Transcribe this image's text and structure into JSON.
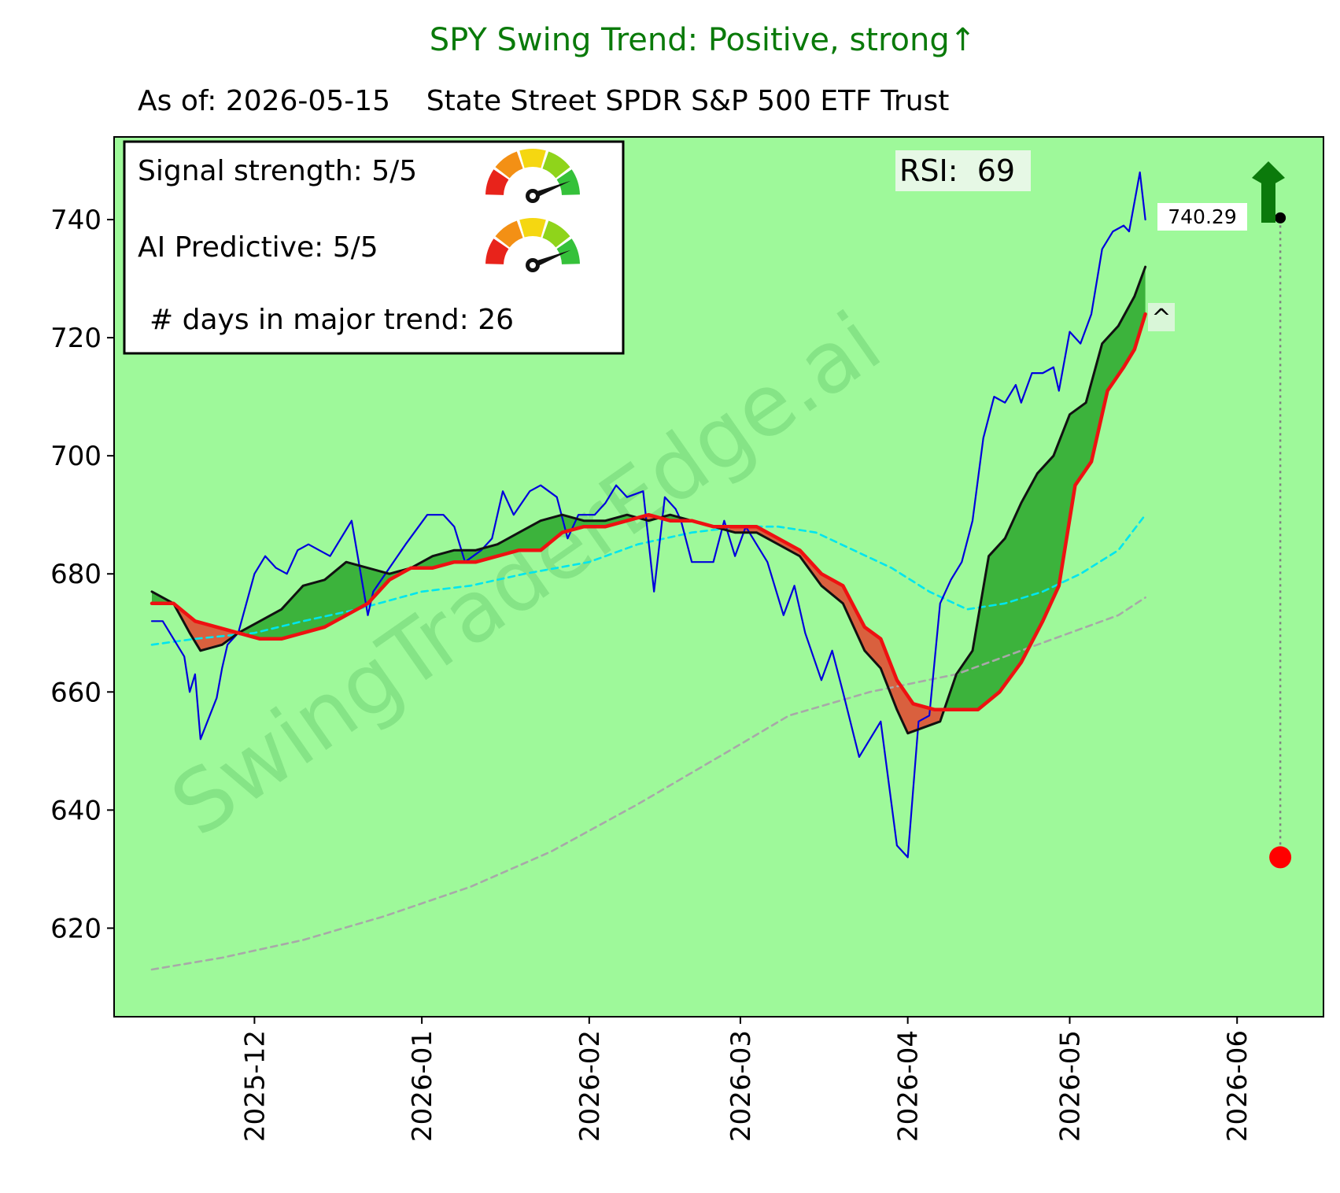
{
  "chart_data": {
    "type": "line",
    "title": "SPY  Swing Trend: Positive, strong↑",
    "subtitle": "As of: 2026-05-15    State Street SPDR S&P 500 ETF Trust",
    "xlabel": "",
    "ylabel": "",
    "ylim": [
      605,
      754
    ],
    "xlim": [
      "2025-11-05",
      "2026-06-17"
    ],
    "x_ticks": [
      "2025-12",
      "2026-01",
      "2026-02",
      "2026-03",
      "2026-04",
      "2026-05",
      "2026-06"
    ],
    "y_ticks": [
      620,
      640,
      660,
      680,
      700,
      720,
      740
    ],
    "grid": false,
    "background_color": "#9ef99a",
    "info_box": {
      "signal_strength": "Signal strength: 5/5",
      "ai_predictive": "AI Predictive: 5/5",
      "days_in_trend": "# days in major trend: 26"
    },
    "rsi_label": "RSI:  69",
    "price_label": "740.29",
    "marker_label": "^",
    "watermark": "SwingTraderEdge.ai",
    "target_arrow": {
      "date": "2026-06-09",
      "from": 632,
      "to": 740.29,
      "color": "#0b7a0b"
    },
    "series": [
      {
        "color": "#0000dd",
        "points": [
          [
            "2025-11-12",
            672
          ],
          [
            "2025-11-14",
            672
          ],
          [
            "2025-11-18",
            666
          ],
          [
            "2025-11-19",
            660
          ],
          [
            "2025-11-20",
            663
          ],
          [
            "2025-11-21",
            652
          ],
          [
            "2025-11-24",
            659
          ],
          [
            "2025-11-25",
            664
          ],
          [
            "2025-11-26",
            668
          ],
          [
            "2025-11-28",
            670
          ],
          [
            "2025-12-01",
            680
          ],
          [
            "2025-12-03",
            683
          ],
          [
            "2025-12-05",
            681
          ],
          [
            "2025-12-07",
            680
          ],
          [
            "2025-12-09",
            684
          ],
          [
            "2025-12-11",
            685
          ],
          [
            "2025-12-13",
            684
          ],
          [
            "2025-12-15",
            683
          ],
          [
            "2025-12-17",
            686
          ],
          [
            "2025-12-19",
            689
          ],
          [
            "2025-12-22",
            673
          ],
          [
            "2025-12-23",
            677
          ],
          [
            "2025-12-26",
            681
          ],
          [
            "2025-12-29",
            685
          ],
          [
            "2026-01-02",
            690
          ],
          [
            "2026-01-05",
            690
          ],
          [
            "2026-01-07",
            688
          ],
          [
            "2026-01-09",
            682
          ],
          [
            "2026-01-12",
            684
          ],
          [
            "2026-01-14",
            686
          ],
          [
            "2026-01-16",
            694
          ],
          [
            "2026-01-18",
            690
          ],
          [
            "2026-01-21",
            694
          ],
          [
            "2026-01-23",
            695
          ],
          [
            "2026-01-26",
            693
          ],
          [
            "2026-01-28",
            686
          ],
          [
            "2026-01-30",
            690
          ],
          [
            "2026-02-02",
            690
          ],
          [
            "2026-02-04",
            692
          ],
          [
            "2026-02-06",
            695
          ],
          [
            "2026-02-08",
            693
          ],
          [
            "2026-02-11",
            694
          ],
          [
            "2026-02-13",
            677
          ],
          [
            "2026-02-15",
            693
          ],
          [
            "2026-02-17",
            691
          ],
          [
            "2026-02-18",
            689
          ],
          [
            "2026-02-20",
            682
          ],
          [
            "2026-02-24",
            682
          ],
          [
            "2026-02-26",
            689
          ],
          [
            "2026-02-28",
            683
          ],
          [
            "2026-03-02",
            688
          ],
          [
            "2026-03-04",
            685
          ],
          [
            "2026-03-06",
            682
          ],
          [
            "2026-03-09",
            673
          ],
          [
            "2026-03-11",
            678
          ],
          [
            "2026-03-13",
            670
          ],
          [
            "2026-03-16",
            662
          ],
          [
            "2026-03-18",
            667
          ],
          [
            "2026-03-20",
            660
          ],
          [
            "2026-03-23",
            649
          ],
          [
            "2026-03-25",
            652
          ],
          [
            "2026-03-27",
            655
          ],
          [
            "2026-03-30",
            634
          ],
          [
            "2026-04-01",
            632
          ],
          [
            "2026-04-03",
            655
          ],
          [
            "2026-04-05",
            656
          ],
          [
            "2026-04-07",
            675
          ],
          [
            "2026-04-09",
            679
          ],
          [
            "2026-04-11",
            682
          ],
          [
            "2026-04-13",
            689
          ],
          [
            "2026-04-15",
            703
          ],
          [
            "2026-04-17",
            710
          ],
          [
            "2026-04-19",
            709
          ],
          [
            "2026-04-21",
            712
          ],
          [
            "2026-04-22",
            709
          ],
          [
            "2026-04-24",
            714
          ],
          [
            "2026-04-26",
            714
          ],
          [
            "2026-04-28",
            715
          ],
          [
            "2026-04-29",
            711
          ],
          [
            "2026-05-01",
            721
          ],
          [
            "2026-05-03",
            719
          ],
          [
            "2026-05-05",
            724
          ],
          [
            "2026-05-07",
            735
          ],
          [
            "2026-05-09",
            738
          ],
          [
            "2026-05-11",
            739
          ],
          [
            "2026-05-12",
            738
          ],
          [
            "2026-05-14",
            748
          ],
          [
            "2026-05-15",
            740
          ]
        ]
      },
      {
        "color": "#111111",
        "points": [
          [
            "2025-11-12",
            677
          ],
          [
            "2025-11-16",
            675
          ],
          [
            "2025-11-19",
            670
          ],
          [
            "2025-11-21",
            667
          ],
          [
            "2025-11-25",
            668
          ],
          [
            "2025-11-28",
            670
          ],
          [
            "2025-12-02",
            672
          ],
          [
            "2025-12-06",
            674
          ],
          [
            "2025-12-10",
            678
          ],
          [
            "2025-12-14",
            679
          ],
          [
            "2025-12-18",
            682
          ],
          [
            "2025-12-22",
            681
          ],
          [
            "2025-12-26",
            680
          ],
          [
            "2025-12-30",
            681
          ],
          [
            "2026-01-03",
            683
          ],
          [
            "2026-01-07",
            684
          ],
          [
            "2026-01-11",
            684
          ],
          [
            "2026-01-15",
            685
          ],
          [
            "2026-01-19",
            687
          ],
          [
            "2026-01-23",
            689
          ],
          [
            "2026-01-27",
            690
          ],
          [
            "2026-01-31",
            689
          ],
          [
            "2026-02-04",
            689
          ],
          [
            "2026-02-08",
            690
          ],
          [
            "2026-02-12",
            689
          ],
          [
            "2026-02-16",
            690
          ],
          [
            "2026-02-20",
            689
          ],
          [
            "2026-02-24",
            688
          ],
          [
            "2026-02-28",
            687
          ],
          [
            "2026-03-04",
            687
          ],
          [
            "2026-03-08",
            685
          ],
          [
            "2026-03-12",
            683
          ],
          [
            "2026-03-16",
            678
          ],
          [
            "2026-03-20",
            675
          ],
          [
            "2026-03-24",
            667
          ],
          [
            "2026-03-27",
            664
          ],
          [
            "2026-03-30",
            657
          ],
          [
            "2026-04-01",
            653
          ],
          [
            "2026-04-04",
            654
          ],
          [
            "2026-04-07",
            655
          ],
          [
            "2026-04-10",
            663
          ],
          [
            "2026-04-13",
            667
          ],
          [
            "2026-04-16",
            683
          ],
          [
            "2026-04-19",
            686
          ],
          [
            "2026-04-22",
            692
          ],
          [
            "2026-04-25",
            697
          ],
          [
            "2026-04-28",
            700
          ],
          [
            "2026-05-01",
            707
          ],
          [
            "2026-05-04",
            709
          ],
          [
            "2026-05-07",
            719
          ],
          [
            "2026-05-10",
            722
          ],
          [
            "2026-05-13",
            727
          ],
          [
            "2026-05-15",
            732
          ]
        ]
      },
      {
        "color": "#ee1111",
        "points": [
          [
            "2025-11-12",
            675
          ],
          [
            "2025-11-16",
            675
          ],
          [
            "2025-11-20",
            672
          ],
          [
            "2025-11-24",
            671
          ],
          [
            "2025-11-28",
            670
          ],
          [
            "2025-12-02",
            669
          ],
          [
            "2025-12-06",
            669
          ],
          [
            "2025-12-10",
            670
          ],
          [
            "2025-12-14",
            671
          ],
          [
            "2025-12-18",
            673
          ],
          [
            "2025-12-22",
            675
          ],
          [
            "2025-12-26",
            679
          ],
          [
            "2025-12-30",
            681
          ],
          [
            "2026-01-03",
            681
          ],
          [
            "2026-01-07",
            682
          ],
          [
            "2026-01-11",
            682
          ],
          [
            "2026-01-15",
            683
          ],
          [
            "2026-01-19",
            684
          ],
          [
            "2026-01-23",
            684
          ],
          [
            "2026-01-27",
            687
          ],
          [
            "2026-01-31",
            688
          ],
          [
            "2026-02-04",
            688
          ],
          [
            "2026-02-08",
            689
          ],
          [
            "2026-02-12",
            690
          ],
          [
            "2026-02-16",
            689
          ],
          [
            "2026-02-20",
            689
          ],
          [
            "2026-02-24",
            688
          ],
          [
            "2026-02-28",
            688
          ],
          [
            "2026-03-04",
            688
          ],
          [
            "2026-03-08",
            686
          ],
          [
            "2026-03-12",
            684
          ],
          [
            "2026-03-16",
            680
          ],
          [
            "2026-03-20",
            678
          ],
          [
            "2026-03-24",
            671
          ],
          [
            "2026-03-27",
            669
          ],
          [
            "2026-03-30",
            662
          ],
          [
            "2026-04-02",
            658
          ],
          [
            "2026-04-06",
            657
          ],
          [
            "2026-04-10",
            657
          ],
          [
            "2026-04-14",
            657
          ],
          [
            "2026-04-18",
            660
          ],
          [
            "2026-04-22",
            665
          ],
          [
            "2026-04-26",
            672
          ],
          [
            "2026-04-29",
            678
          ],
          [
            "2026-05-02",
            695
          ],
          [
            "2026-05-05",
            699
          ],
          [
            "2026-05-08",
            711
          ],
          [
            "2026-05-11",
            715
          ],
          [
            "2026-05-13",
            718
          ],
          [
            "2026-05-15",
            724
          ]
        ]
      },
      {
        "color": "#00e5ee",
        "dashed": true,
        "points": [
          [
            "2025-11-12",
            668
          ],
          [
            "2025-11-20",
            669
          ],
          [
            "2025-12-01",
            670
          ],
          [
            "2025-12-10",
            672
          ],
          [
            "2025-12-20",
            674
          ],
          [
            "2026-01-01",
            677
          ],
          [
            "2026-01-10",
            678
          ],
          [
            "2026-01-20",
            680
          ],
          [
            "2026-02-01",
            682
          ],
          [
            "2026-02-10",
            685
          ],
          [
            "2026-02-20",
            687
          ],
          [
            "2026-03-01",
            688
          ],
          [
            "2026-03-08",
            688
          ],
          [
            "2026-03-15",
            687
          ],
          [
            "2026-03-22",
            684
          ],
          [
            "2026-03-29",
            681
          ],
          [
            "2026-04-05",
            677
          ],
          [
            "2026-04-12",
            674
          ],
          [
            "2026-04-19",
            675
          ],
          [
            "2026-04-26",
            677
          ],
          [
            "2026-05-03",
            680
          ],
          [
            "2026-05-10",
            684
          ],
          [
            "2026-05-15",
            690
          ]
        ]
      },
      {
        "color": "#a8a8a8",
        "dashed": true,
        "points": [
          [
            "2025-11-12",
            613
          ],
          [
            "2025-11-25",
            615
          ],
          [
            "2025-12-10",
            618
          ],
          [
            "2025-12-25",
            622
          ],
          [
            "2026-01-10",
            627
          ],
          [
            "2026-01-25",
            633
          ],
          [
            "2026-02-10",
            641
          ],
          [
            "2026-02-25",
            649
          ],
          [
            "2026-03-10",
            656
          ],
          [
            "2026-03-25",
            660
          ],
          [
            "2026-04-10",
            663
          ],
          [
            "2026-04-25",
            668
          ],
          [
            "2026-05-10",
            673
          ],
          [
            "2026-05-15",
            676
          ]
        ]
      }
    ]
  }
}
